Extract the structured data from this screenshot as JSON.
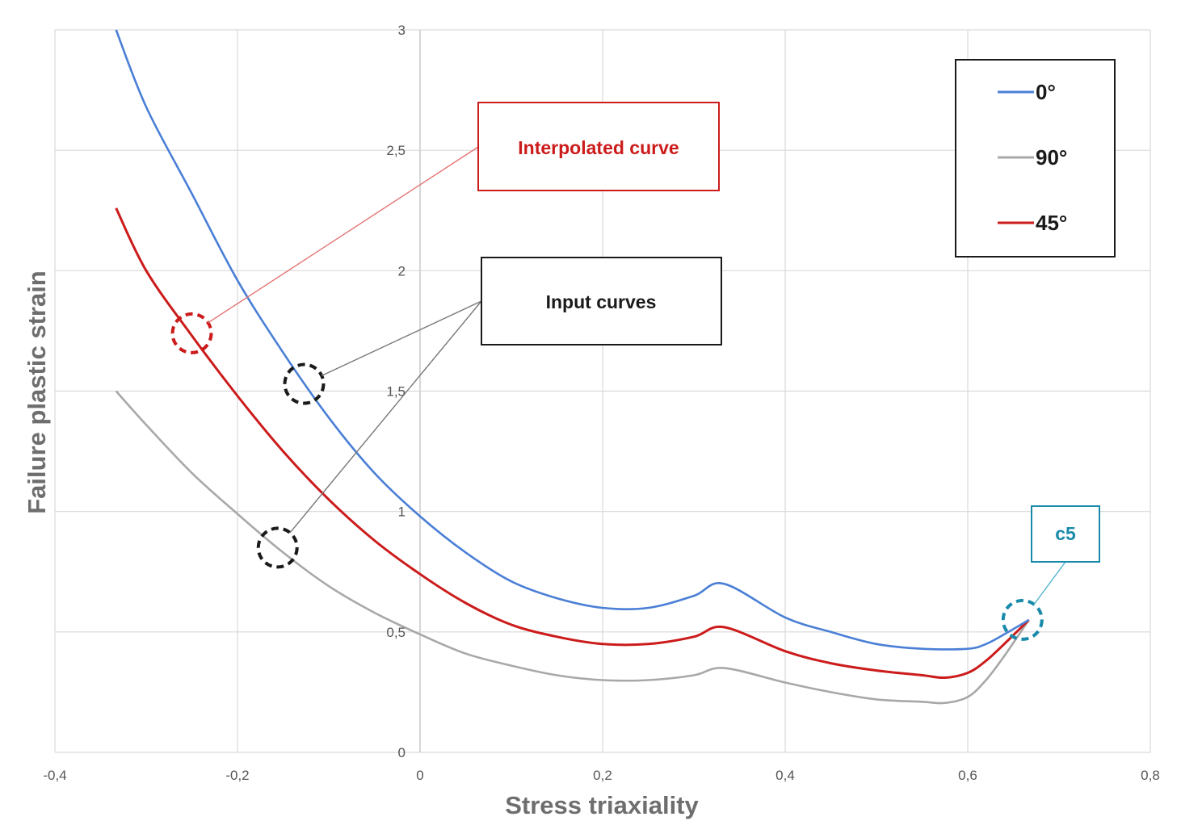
{
  "chart_data": {
    "type": "line",
    "xlabel": "Stress triaxiality",
    "ylabel": "Failure plastic strain",
    "xlim": [
      -0.4,
      0.8
    ],
    "ylim": [
      0,
      3
    ],
    "x_ticks": [
      "-0,4",
      "-0,2",
      "0",
      "0,2",
      "0,4",
      "0,6",
      "0,8"
    ],
    "y_ticks": [
      "0",
      "0,5",
      "1",
      "1,5",
      "2",
      "2,5",
      "3"
    ],
    "grid": true,
    "legend_position": "top-right",
    "series": [
      {
        "name": "0°",
        "color": "#4a7fd6",
        "x": [
          -0.333,
          -0.3,
          -0.25,
          -0.2,
          -0.15,
          -0.1,
          -0.05,
          0,
          0.05,
          0.1,
          0.15,
          0.2,
          0.25,
          0.3,
          0.333,
          0.4,
          0.45,
          0.5,
          0.55,
          0.6,
          0.62,
          0.64,
          0.667
        ],
        "y": [
          3.0,
          2.68,
          2.32,
          1.96,
          1.66,
          1.39,
          1.16,
          0.98,
          0.83,
          0.71,
          0.64,
          0.6,
          0.6,
          0.65,
          0.7,
          0.56,
          0.5,
          0.45,
          0.43,
          0.43,
          0.45,
          0.49,
          0.55
        ]
      },
      {
        "name": "90°",
        "color": "#a8a8a8",
        "x": [
          -0.333,
          -0.3,
          -0.25,
          -0.2,
          -0.15,
          -0.1,
          -0.05,
          0,
          0.05,
          0.1,
          0.15,
          0.2,
          0.25,
          0.3,
          0.333,
          0.4,
          0.45,
          0.5,
          0.55,
          0.575,
          0.6,
          0.62,
          0.64,
          0.667
        ],
        "y": [
          1.5,
          1.36,
          1.16,
          0.99,
          0.83,
          0.69,
          0.58,
          0.49,
          0.41,
          0.36,
          0.32,
          0.3,
          0.3,
          0.32,
          0.35,
          0.29,
          0.25,
          0.22,
          0.21,
          0.205,
          0.23,
          0.3,
          0.4,
          0.55
        ]
      },
      {
        "name": "45°",
        "color": "#cc1b1b",
        "x": [
          -0.333,
          -0.3,
          -0.25,
          -0.2,
          -0.15,
          -0.1,
          -0.05,
          0,
          0.05,
          0.1,
          0.15,
          0.2,
          0.25,
          0.3,
          0.333,
          0.4,
          0.45,
          0.5,
          0.55,
          0.575,
          0.6,
          0.62,
          0.64,
          0.667
        ],
        "y": [
          2.26,
          2.0,
          1.73,
          1.48,
          1.25,
          1.05,
          0.88,
          0.74,
          0.62,
          0.53,
          0.48,
          0.45,
          0.45,
          0.48,
          0.52,
          0.42,
          0.37,
          0.34,
          0.32,
          0.31,
          0.33,
          0.38,
          0.45,
          0.55
        ]
      }
    ],
    "annotations": [
      {
        "label": "Interpolated curve",
        "color": "#cc1b1b"
      },
      {
        "label": "Input curves",
        "color": "#1a1a1a"
      },
      {
        "label": "c5",
        "color": "#1a8aab"
      }
    ],
    "markers": [
      {
        "x": -0.25,
        "y": 1.74,
        "color": "#cc1b1b"
      },
      {
        "x": -0.127,
        "y": 1.53,
        "color": "#1a1a1a"
      },
      {
        "x": -0.156,
        "y": 0.85,
        "color": "#1a1a1a"
      },
      {
        "x": 0.66,
        "y": 0.55,
        "color": "#1a8aab"
      }
    ]
  }
}
